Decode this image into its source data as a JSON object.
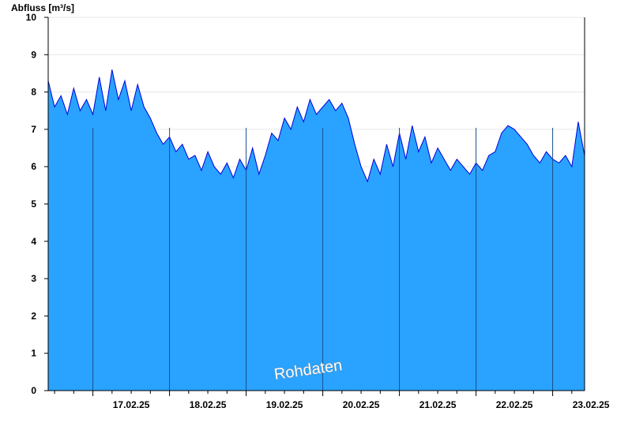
{
  "chart_data": {
    "type": "area",
    "ylabel": "Abfluss [m³/s]",
    "ylim": [
      0,
      10
    ],
    "yticks": [
      "0",
      "1",
      "2",
      "3",
      "4",
      "5",
      "6",
      "7",
      "8",
      "9",
      "10"
    ],
    "xlim": [
      "2025-02-16T10:00",
      "2025-02-23T10:00"
    ],
    "xtick_labels": [
      "17.02.25",
      "18.02.25",
      "19.02.25",
      "20.02.25",
      "21.02.25",
      "22.02.25",
      "23.02.25"
    ],
    "day_boundaries": [
      "2025-02-17",
      "2025-02-18",
      "2025-02-19",
      "2025-02-20",
      "2025-02-21",
      "2025-02-22",
      "2025-02-23"
    ],
    "grid": true,
    "annotation": "Rohdaten",
    "colors": {
      "fill": "#29a3ff",
      "line": "#0000dd",
      "grid": "#e6e6e6",
      "day_line": "#1a4f8a",
      "axis": "#000000"
    },
    "series": [
      {
        "x": [
          "2025-02-16T10:00",
          "2025-02-16T12:00",
          "2025-02-16T14:00",
          "2025-02-16T16:00",
          "2025-02-16T18:00",
          "2025-02-16T20:00",
          "2025-02-16T22:00",
          "2025-02-17T00:00",
          "2025-02-17T02:00",
          "2025-02-17T04:00",
          "2025-02-17T06:00",
          "2025-02-17T08:00",
          "2025-02-17T10:00",
          "2025-02-17T12:00",
          "2025-02-17T14:00",
          "2025-02-17T16:00",
          "2025-02-17T18:00",
          "2025-02-17T20:00",
          "2025-02-17T22:00",
          "2025-02-18T00:00",
          "2025-02-18T02:00",
          "2025-02-18T04:00",
          "2025-02-18T06:00",
          "2025-02-18T08:00",
          "2025-02-18T10:00",
          "2025-02-18T12:00",
          "2025-02-18T14:00",
          "2025-02-18T16:00",
          "2025-02-18T18:00",
          "2025-02-18T20:00",
          "2025-02-18T22:00",
          "2025-02-19T00:00",
          "2025-02-19T02:00",
          "2025-02-19T04:00",
          "2025-02-19T06:00",
          "2025-02-19T08:00",
          "2025-02-19T10:00",
          "2025-02-19T12:00",
          "2025-02-19T14:00",
          "2025-02-19T16:00",
          "2025-02-19T18:00",
          "2025-02-19T20:00",
          "2025-02-19T22:00",
          "2025-02-20T00:00",
          "2025-02-20T02:00",
          "2025-02-20T04:00",
          "2025-02-20T06:00",
          "2025-02-20T08:00",
          "2025-02-20T10:00",
          "2025-02-20T12:00",
          "2025-02-20T14:00",
          "2025-02-20T16:00",
          "2025-02-20T18:00",
          "2025-02-20T20:00",
          "2025-02-20T22:00",
          "2025-02-21T00:00",
          "2025-02-21T02:00",
          "2025-02-21T04:00",
          "2025-02-21T06:00",
          "2025-02-21T08:00",
          "2025-02-21T10:00",
          "2025-02-21T12:00",
          "2025-02-21T14:00",
          "2025-02-21T16:00",
          "2025-02-21T18:00",
          "2025-02-21T20:00",
          "2025-02-21T22:00",
          "2025-02-22T00:00",
          "2025-02-22T02:00",
          "2025-02-22T04:00",
          "2025-02-22T06:00",
          "2025-02-22T08:00",
          "2025-02-22T10:00",
          "2025-02-22T12:00",
          "2025-02-22T14:00",
          "2025-02-22T16:00",
          "2025-02-22T18:00",
          "2025-02-22T20:00",
          "2025-02-22T22:00",
          "2025-02-23T00:00",
          "2025-02-23T02:00",
          "2025-02-23T04:00",
          "2025-02-23T06:00",
          "2025-02-23T08:00",
          "2025-02-23T10:00"
        ],
        "values": [
          8.3,
          7.6,
          7.9,
          7.4,
          8.1,
          7.5,
          7.8,
          7.4,
          8.4,
          7.5,
          8.6,
          7.8,
          8.3,
          7.5,
          8.2,
          7.6,
          7.3,
          6.9,
          6.6,
          6.8,
          6.4,
          6.6,
          6.2,
          6.3,
          5.9,
          6.4,
          6.0,
          5.8,
          6.1,
          5.7,
          6.2,
          5.9,
          6.5,
          5.8,
          6.3,
          6.9,
          6.7,
          7.3,
          7.0,
          7.6,
          7.2,
          7.8,
          7.4,
          7.6,
          7.8,
          7.5,
          7.7,
          7.3,
          6.6,
          6.0,
          5.6,
          6.2,
          5.8,
          6.6,
          6.0,
          6.9,
          6.2,
          7.1,
          6.4,
          6.8,
          6.1,
          6.5,
          6.2,
          5.9,
          6.2,
          6.0,
          5.8,
          6.1,
          5.9,
          6.3,
          6.4,
          6.9,
          7.1,
          7.0,
          6.8,
          6.6,
          6.3,
          6.1,
          6.4,
          6.2,
          6.1,
          6.3,
          6.0,
          7.2,
          6.3
        ]
      }
    ]
  }
}
